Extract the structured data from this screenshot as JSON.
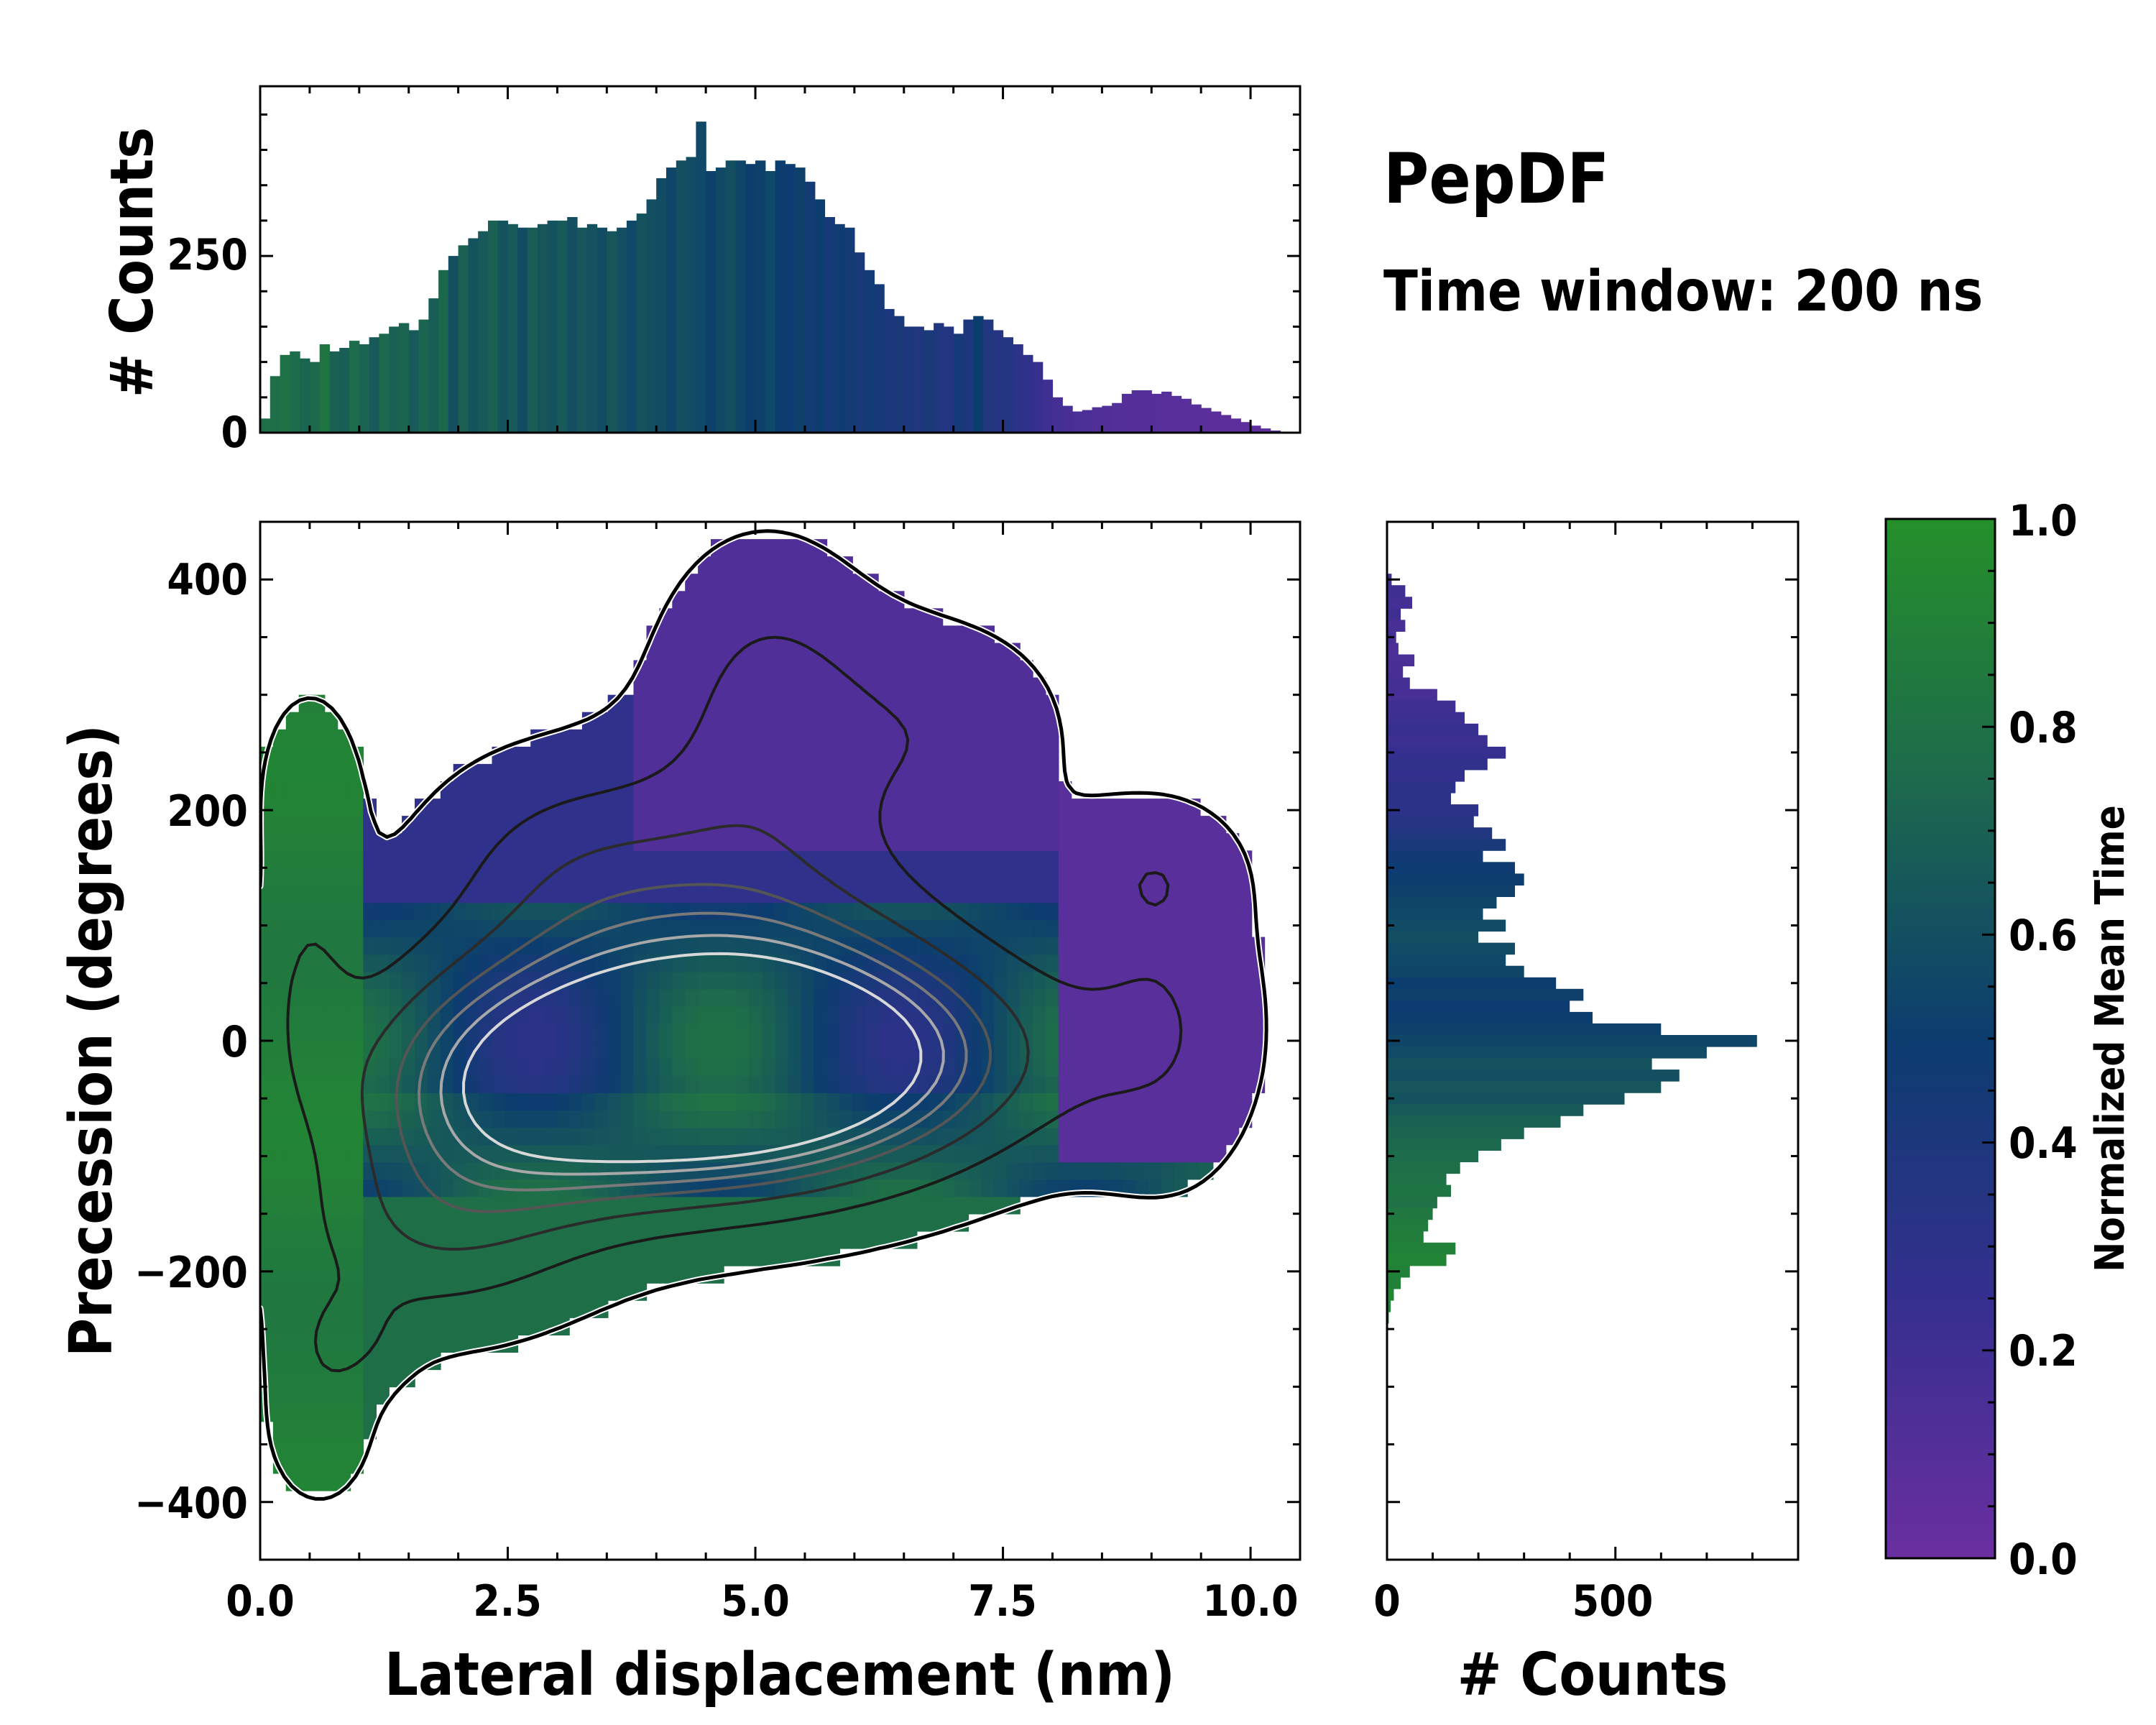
{
  "title": "PepDF",
  "subtitle": "Time window: 200 ns",
  "colors": {
    "low": "#6a2fa0",
    "mid": "#0c3d6f",
    "high": "#25902a",
    "contour_outer": "#000000",
    "contour_inner": "#ffffff"
  },
  "chart_data": [
    {
      "id": "top_histogram",
      "type": "bar",
      "xlabel": "",
      "ylabel": "# Counts",
      "xlim": [
        0,
        10.5
      ],
      "ylim": [
        0,
        490
      ],
      "yticks": [
        0,
        250
      ],
      "ytick_labels": [
        "0",
        "250"
      ],
      "bin_width": 0.1,
      "x": [
        0.05,
        0.15,
        0.25,
        0.35,
        0.45,
        0.55,
        0.65,
        0.75,
        0.85,
        0.95,
        1.05,
        1.15,
        1.25,
        1.35,
        1.45,
        1.55,
        1.65,
        1.75,
        1.85,
        1.95,
        2.05,
        2.15,
        2.25,
        2.35,
        2.45,
        2.55,
        2.65,
        2.75,
        2.85,
        2.95,
        3.05,
        3.15,
        3.25,
        3.35,
        3.45,
        3.55,
        3.65,
        3.75,
        3.85,
        3.95,
        4.05,
        4.15,
        4.25,
        4.35,
        4.45,
        4.55,
        4.65,
        4.75,
        4.85,
        4.95,
        5.05,
        5.15,
        5.25,
        5.35,
        5.45,
        5.55,
        5.65,
        5.75,
        5.85,
        5.95,
        6.05,
        6.15,
        6.25,
        6.35,
        6.45,
        6.55,
        6.65,
        6.75,
        6.85,
        6.95,
        7.05,
        7.15,
        7.25,
        7.35,
        7.45,
        7.55,
        7.65,
        7.75,
        7.85,
        7.95,
        8.05,
        8.15,
        8.25,
        8.35,
        8.45,
        8.55,
        8.65,
        8.75,
        8.85,
        8.95,
        9.05,
        9.15,
        9.25,
        9.35,
        9.45,
        9.55,
        9.65,
        9.75,
        9.85,
        9.95,
        10.05,
        10.15,
        10.25,
        10.35,
        10.45
      ],
      "values": [
        20,
        80,
        110,
        115,
        105,
        100,
        125,
        115,
        120,
        130,
        125,
        135,
        140,
        150,
        155,
        145,
        160,
        190,
        230,
        250,
        265,
        275,
        285,
        300,
        300,
        295,
        290,
        290,
        295,
        300,
        300,
        305,
        290,
        295,
        290,
        285,
        290,
        300,
        310,
        330,
        360,
        375,
        385,
        390,
        440,
        370,
        375,
        385,
        385,
        380,
        385,
        370,
        385,
        380,
        375,
        355,
        330,
        305,
        295,
        290,
        255,
        230,
        210,
        175,
        165,
        150,
        150,
        145,
        155,
        150,
        140,
        160,
        165,
        160,
        145,
        135,
        125,
        110,
        100,
        75,
        50,
        38,
        30,
        32,
        36,
        38,
        42,
        55,
        60,
        60,
        55,
        58,
        52,
        48,
        40,
        35,
        30,
        25,
        20,
        15,
        10,
        6,
        3,
        1,
        0
      ],
      "mean_time": [
        0.78,
        0.78,
        0.8,
        0.76,
        0.72,
        0.74,
        0.82,
        0.7,
        0.68,
        0.76,
        0.72,
        0.66,
        0.74,
        0.7,
        0.72,
        0.66,
        0.72,
        0.68,
        0.74,
        0.6,
        0.7,
        0.62,
        0.66,
        0.7,
        0.62,
        0.66,
        0.58,
        0.68,
        0.64,
        0.62,
        0.66,
        0.6,
        0.64,
        0.62,
        0.58,
        0.64,
        0.6,
        0.56,
        0.62,
        0.6,
        0.58,
        0.54,
        0.6,
        0.58,
        0.56,
        0.52,
        0.56,
        0.6,
        0.54,
        0.5,
        0.52,
        0.56,
        0.5,
        0.48,
        0.52,
        0.46,
        0.5,
        0.44,
        0.48,
        0.46,
        0.42,
        0.46,
        0.44,
        0.4,
        0.42,
        0.4,
        0.38,
        0.42,
        0.38,
        0.36,
        0.44,
        0.4,
        0.5,
        0.38,
        0.34,
        0.36,
        0.3,
        0.28,
        0.24,
        0.2,
        0.18,
        0.16,
        0.15,
        0.14,
        0.12,
        0.12,
        0.11,
        0.1,
        0.1,
        0.1,
        0.09,
        0.09,
        0.08,
        0.08,
        0.08,
        0.07,
        0.07,
        0.07,
        0.06,
        0.06,
        0.06,
        0.05,
        0.05,
        0.05,
        0.05
      ]
    },
    {
      "id": "main_heatmap",
      "type": "heatmap",
      "xlabel": "Lateral displacement (nm)",
      "ylabel": "Precession (degrees)",
      "xlim": [
        0,
        10.5
      ],
      "ylim": [
        -450,
        450
      ],
      "xticks": [
        0,
        2.5,
        5.0,
        7.5,
        10.0
      ],
      "xtick_labels": [
        "0.0",
        "2.5",
        "5.0",
        "7.5",
        "10.0"
      ],
      "yticks": [
        -400,
        -200,
        0,
        200,
        400
      ],
      "ytick_labels": [
        "−400",
        "−200",
        "0",
        "200",
        "400"
      ],
      "regions": [
        {
          "description": "main band",
          "x_range": [
            0.2,
            8.3
          ],
          "y_range": [
            -230,
            120
          ],
          "mean_time": 0.55
        },
        {
          "description": "upper purple lobe",
          "x_range": [
            4.0,
            6.3
          ],
          "y_range": [
            170,
            410
          ],
          "mean_time": 0.12
        },
        {
          "description": "upper-right lobe",
          "x_range": [
            8.0,
            10.4
          ],
          "y_range": [
            -80,
            180
          ],
          "mean_time": 0.08
        },
        {
          "description": "left green strip",
          "x_range": [
            0.0,
            1.1
          ],
          "y_range": [
            -400,
            300
          ],
          "mean_time": 0.88
        },
        {
          "description": "mid upper lobe",
          "x_range": [
            2.0,
            4.2
          ],
          "y_range": [
            40,
            290
          ],
          "mean_time": 0.28
        }
      ],
      "density_peaks": [
        {
          "x": 3.5,
          "y": -15,
          "level": "high"
        },
        {
          "x": 4.6,
          "y": -55,
          "level": "high"
        },
        {
          "x": 5.0,
          "y": 65,
          "level": "mid"
        },
        {
          "x": 5.5,
          "y": 40,
          "level": "mid"
        },
        {
          "x": 2.5,
          "y": -75,
          "level": "mid"
        },
        {
          "x": 7.3,
          "y": -15,
          "level": "mid"
        },
        {
          "x": 5.4,
          "y": 270,
          "level": "low"
        },
        {
          "x": 1.4,
          "y": -180,
          "level": "low"
        }
      ]
    },
    {
      "id": "right_histogram",
      "type": "bar",
      "orientation": "horizontal",
      "xlabel": "# Counts",
      "ylabel": "",
      "xlim": [
        0,
        900
      ],
      "ylim": [
        -450,
        450
      ],
      "xticks": [
        0,
        500
      ],
      "xtick_labels": [
        "0",
        "500"
      ],
      "bin_width": 10,
      "y": [
        400,
        390,
        380,
        370,
        360,
        350,
        340,
        330,
        320,
        310,
        300,
        290,
        280,
        270,
        260,
        250,
        240,
        230,
        220,
        210,
        200,
        190,
        180,
        170,
        160,
        150,
        140,
        130,
        120,
        110,
        100,
        90,
        80,
        70,
        60,
        50,
        40,
        30,
        20,
        10,
        0,
        -10,
        -20,
        -30,
        -40,
        -50,
        -60,
        -70,
        -80,
        -90,
        -100,
        -110,
        -120,
        -130,
        -140,
        -150,
        -160,
        -170,
        -180,
        -190,
        -200,
        -210,
        -220,
        -230,
        -240,
        -250,
        -260,
        -270,
        -280,
        -290,
        -300,
        -310,
        -320,
        -330,
        -340,
        -350,
        -360,
        -370,
        -380,
        -390
      ],
      "values": [
        10,
        40,
        55,
        30,
        40,
        20,
        25,
        60,
        35,
        50,
        110,
        150,
        170,
        200,
        220,
        260,
        220,
        170,
        150,
        140,
        200,
        190,
        230,
        260,
        210,
        280,
        300,
        280,
        240,
        210,
        260,
        200,
        280,
        260,
        300,
        370,
        430,
        400,
        450,
        600,
        810,
        700,
        580,
        640,
        600,
        520,
        430,
        380,
        300,
        250,
        200,
        160,
        130,
        140,
        110,
        100,
        90,
        80,
        150,
        130,
        50,
        30,
        15,
        8,
        4,
        2,
        1,
        0,
        0,
        0,
        0,
        0,
        0,
        0,
        0,
        0,
        0,
        0,
        0,
        0
      ],
      "mean_time": [
        0.2,
        0.2,
        0.18,
        0.2,
        0.16,
        0.18,
        0.14,
        0.15,
        0.16,
        0.18,
        0.16,
        0.2,
        0.22,
        0.24,
        0.22,
        0.25,
        0.28,
        0.27,
        0.3,
        0.32,
        0.3,
        0.34,
        0.38,
        0.42,
        0.45,
        0.48,
        0.5,
        0.52,
        0.55,
        0.56,
        0.58,
        0.6,
        0.58,
        0.56,
        0.55,
        0.5,
        0.52,
        0.48,
        0.5,
        0.52,
        0.55,
        0.58,
        0.62,
        0.6,
        0.64,
        0.62,
        0.66,
        0.7,
        0.72,
        0.74,
        0.76,
        0.78,
        0.8,
        0.82,
        0.8,
        0.84,
        0.86,
        0.88,
        0.9,
        0.92,
        0.9,
        0.9,
        0.92,
        0.9,
        0.92,
        0.9,
        0.9,
        0.9,
        0.9,
        0.9,
        0.9,
        0.9,
        0.9,
        0.9,
        0.9,
        0.9,
        0.9,
        0.9,
        0.9,
        0.9
      ]
    },
    {
      "id": "colorbar",
      "type": "colorbar",
      "label": "Normalized Mean Time",
      "range": [
        0.0,
        1.0
      ],
      "ticks": [
        0.0,
        0.2,
        0.4,
        0.6,
        0.8,
        1.0
      ],
      "tick_labels": [
        "0.0",
        "0.2",
        "0.4",
        "0.6",
        "0.8",
        "1.0"
      ]
    }
  ]
}
